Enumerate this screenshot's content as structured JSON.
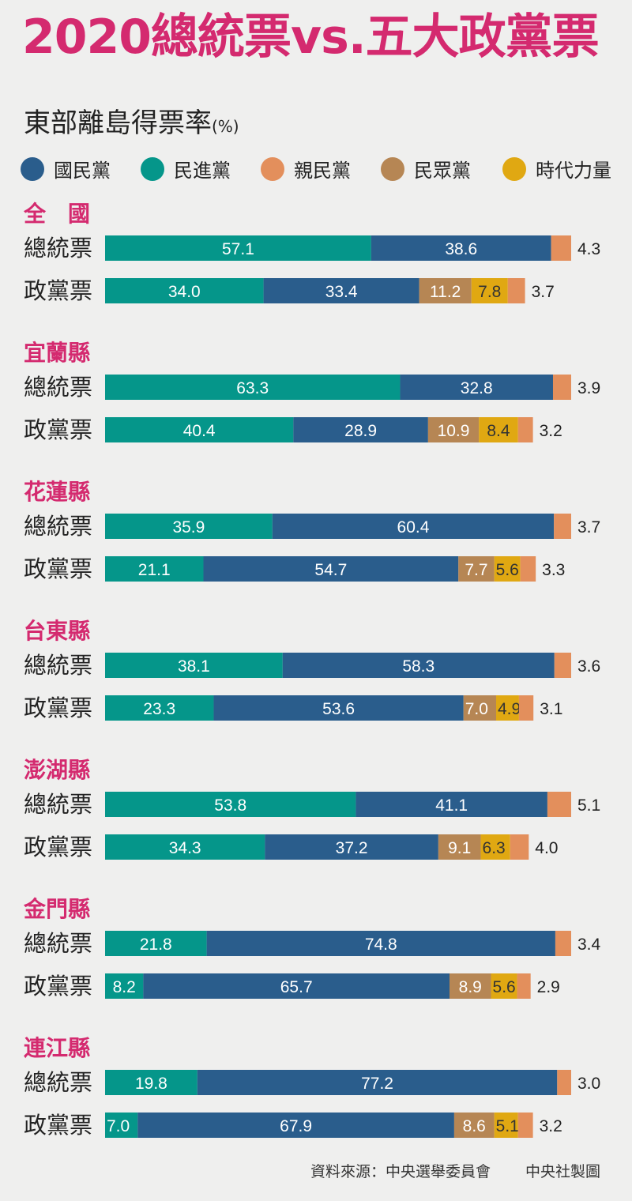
{
  "title": "2020總統票vs.五大政黨票",
  "subtitle": "東部離島得票率",
  "unit": "(%)",
  "source": "資料來源：中央選舉委員會",
  "credit": "中央社製圖",
  "colors": {
    "國民黨": "#2a5d8c",
    "民進黨": "#05968a",
    "親民黨": "#e38f5c",
    "民眾黨": "#b68654",
    "時代力量": "#e0a812",
    "group_title": "#d42a6f"
  },
  "chart_data": {
    "type": "bar",
    "stacked": true,
    "orientation": "horizontal",
    "legend": [
      "國民黨",
      "民進黨",
      "親民黨",
      "民眾黨",
      "時代力量"
    ],
    "groups": [
      {
        "name": "全　國",
        "rows": [
          {
            "label": "總統票",
            "segments": [
              {
                "party": "民進黨",
                "value": 57.1
              },
              {
                "party": "國民黨",
                "value": 38.6
              },
              {
                "party": "親民黨",
                "value": 4.3
              }
            ]
          },
          {
            "label": "政黨票",
            "segments": [
              {
                "party": "民進黨",
                "value": 34.0
              },
              {
                "party": "國民黨",
                "value": 33.4
              },
              {
                "party": "民眾黨",
                "value": 11.2
              },
              {
                "party": "時代力量",
                "value": 7.8
              },
              {
                "party": "親民黨",
                "value": 3.7
              }
            ]
          }
        ]
      },
      {
        "name": "宜蘭縣",
        "rows": [
          {
            "label": "總統票",
            "segments": [
              {
                "party": "民進黨",
                "value": 63.3
              },
              {
                "party": "國民黨",
                "value": 32.8
              },
              {
                "party": "親民黨",
                "value": 3.9
              }
            ]
          },
          {
            "label": "政黨票",
            "segments": [
              {
                "party": "民進黨",
                "value": 40.4
              },
              {
                "party": "國民黨",
                "value": 28.9
              },
              {
                "party": "民眾黨",
                "value": 10.9
              },
              {
                "party": "時代力量",
                "value": 8.4
              },
              {
                "party": "親民黨",
                "value": 3.2
              }
            ]
          }
        ]
      },
      {
        "name": "花蓮縣",
        "rows": [
          {
            "label": "總統票",
            "segments": [
              {
                "party": "民進黨",
                "value": 35.9
              },
              {
                "party": "國民黨",
                "value": 60.4
              },
              {
                "party": "親民黨",
                "value": 3.7
              }
            ]
          },
          {
            "label": "政黨票",
            "segments": [
              {
                "party": "民進黨",
                "value": 21.1
              },
              {
                "party": "國民黨",
                "value": 54.7
              },
              {
                "party": "民眾黨",
                "value": 7.7
              },
              {
                "party": "時代力量",
                "value": 5.6
              },
              {
                "party": "親民黨",
                "value": 3.3
              }
            ]
          }
        ]
      },
      {
        "name": "台東縣",
        "rows": [
          {
            "label": "總統票",
            "segments": [
              {
                "party": "民進黨",
                "value": 38.1
              },
              {
                "party": "國民黨",
                "value": 58.3
              },
              {
                "party": "親民黨",
                "value": 3.6
              }
            ]
          },
          {
            "label": "政黨票",
            "segments": [
              {
                "party": "民進黨",
                "value": 23.3
              },
              {
                "party": "國民黨",
                "value": 53.6
              },
              {
                "party": "民眾黨",
                "value": 7.0
              },
              {
                "party": "時代力量",
                "value": 4.9
              },
              {
                "party": "親民黨",
                "value": 3.1
              }
            ]
          }
        ]
      },
      {
        "name": "澎湖縣",
        "rows": [
          {
            "label": "總統票",
            "segments": [
              {
                "party": "民進黨",
                "value": 53.8
              },
              {
                "party": "國民黨",
                "value": 41.1
              },
              {
                "party": "親民黨",
                "value": 5.1
              }
            ]
          },
          {
            "label": "政黨票",
            "segments": [
              {
                "party": "民進黨",
                "value": 34.3
              },
              {
                "party": "國民黨",
                "value": 37.2
              },
              {
                "party": "民眾黨",
                "value": 9.1
              },
              {
                "party": "時代力量",
                "value": 6.3
              },
              {
                "party": "親民黨",
                "value": 4.0
              }
            ]
          }
        ]
      },
      {
        "name": "金門縣",
        "rows": [
          {
            "label": "總統票",
            "segments": [
              {
                "party": "民進黨",
                "value": 21.8
              },
              {
                "party": "國民黨",
                "value": 74.8
              },
              {
                "party": "親民黨",
                "value": 3.4
              }
            ]
          },
          {
            "label": "政黨票",
            "segments": [
              {
                "party": "民進黨",
                "value": 8.2
              },
              {
                "party": "國民黨",
                "value": 65.7
              },
              {
                "party": "民眾黨",
                "value": 8.9
              },
              {
                "party": "時代力量",
                "value": 5.6
              },
              {
                "party": "親民黨",
                "value": 2.9
              }
            ]
          }
        ]
      },
      {
        "name": "連江縣",
        "rows": [
          {
            "label": "總統票",
            "segments": [
              {
                "party": "民進黨",
                "value": 19.8
              },
              {
                "party": "國民黨",
                "value": 77.2
              },
              {
                "party": "親民黨",
                "value": 3.0
              }
            ]
          },
          {
            "label": "政黨票",
            "segments": [
              {
                "party": "民進黨",
                "value": 7.0
              },
              {
                "party": "國民黨",
                "value": 67.9
              },
              {
                "party": "民眾黨",
                "value": 8.6
              },
              {
                "party": "時代力量",
                "value": 5.1
              },
              {
                "party": "親民黨",
                "value": 3.2
              }
            ]
          }
        ]
      }
    ]
  }
}
